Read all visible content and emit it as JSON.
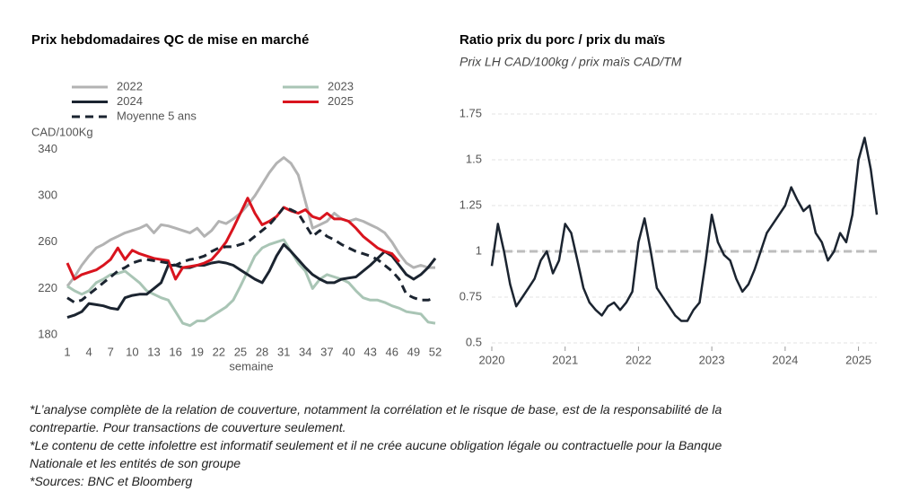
{
  "chart_data": [
    {
      "type": "line",
      "title": "Prix hebdomadaires QC de mise en marché",
      "y_label": "CAD/100Kg",
      "x_label": "semaine",
      "x": [
        1,
        2,
        3,
        4,
        5,
        6,
        7,
        8,
        9,
        10,
        11,
        12,
        13,
        14,
        15,
        16,
        17,
        18,
        19,
        20,
        21,
        22,
        23,
        24,
        25,
        26,
        27,
        28,
        29,
        30,
        31,
        32,
        33,
        34,
        35,
        36,
        37,
        38,
        39,
        40,
        41,
        42,
        43,
        44,
        45,
        46,
        47,
        48,
        49,
        50,
        51,
        52
      ],
      "xlim": [
        1,
        52
      ],
      "xticks": [
        1,
        4,
        7,
        10,
        13,
        16,
        19,
        22,
        25,
        28,
        31,
        34,
        37,
        40,
        43,
        46,
        49,
        52
      ],
      "ylim": [
        180,
        345
      ],
      "yticks": [
        180,
        220,
        260,
        300,
        340
      ],
      "grid": false,
      "legend": "top",
      "series": [
        {
          "name": "2022",
          "color": "#b3b3b3",
          "values": [
            222,
            230,
            240,
            248,
            255,
            258,
            262,
            265,
            268,
            270,
            272,
            275,
            268,
            275,
            274,
            272,
            270,
            268,
            272,
            265,
            270,
            278,
            276,
            280,
            285,
            292,
            300,
            310,
            320,
            328,
            333,
            328,
            318,
            295,
            272,
            275,
            278,
            285,
            280,
            278,
            280,
            278,
            275,
            272,
            268,
            260,
            250,
            242,
            238,
            240,
            238,
            238
          ]
        },
        {
          "name": "2023",
          "color": "#a9c5b5",
          "values": [
            222,
            218,
            215,
            218,
            225,
            228,
            232,
            233,
            235,
            230,
            225,
            218,
            215,
            212,
            210,
            200,
            190,
            188,
            192,
            192,
            196,
            200,
            204,
            210,
            222,
            235,
            248,
            255,
            258,
            260,
            262,
            252,
            242,
            235,
            220,
            228,
            232,
            230,
            228,
            225,
            218,
            212,
            210,
            210,
            208,
            205,
            203,
            200,
            199,
            198,
            191,
            190
          ]
        },
        {
          "name": "2024",
          "color": "#1b2430",
          "values": [
            195,
            197,
            200,
            207,
            206,
            205,
            203,
            202,
            212,
            214,
            215,
            215,
            220,
            225,
            240,
            240,
            238,
            238,
            240,
            240,
            242,
            243,
            242,
            240,
            236,
            232,
            228,
            225,
            235,
            248,
            258,
            252,
            245,
            238,
            232,
            228,
            225,
            225,
            228,
            229,
            230,
            235,
            240,
            246,
            252,
            248,
            240,
            232,
            228,
            232,
            238,
            246
          ]
        },
        {
          "name": "2025",
          "color": "#d9141e",
          "values": [
            242,
            228,
            232,
            234,
            236,
            240,
            245,
            255,
            245,
            253,
            250,
            248,
            246,
            245,
            244,
            228,
            238,
            239,
            240,
            242,
            245,
            252,
            260,
            272,
            285,
            298,
            285,
            275,
            278,
            282,
            290,
            287,
            285,
            288,
            282,
            280,
            285,
            280,
            280,
            278,
            272,
            265,
            260,
            255,
            252,
            250,
            243,
            null,
            null,
            null,
            null,
            null
          ]
        },
        {
          "name": "Moyenne 5 ans",
          "color": "#1b2430",
          "dash": true,
          "values": [
            212,
            208,
            210,
            215,
            220,
            225,
            230,
            235,
            238,
            242,
            244,
            245,
            244,
            243,
            242,
            240,
            243,
            245,
            246,
            248,
            252,
            255,
            256,
            256,
            258,
            260,
            265,
            270,
            275,
            282,
            290,
            288,
            285,
            275,
            265,
            270,
            265,
            262,
            258,
            255,
            252,
            250,
            248,
            245,
            240,
            235,
            228,
            215,
            212,
            210,
            210,
            212
          ]
        }
      ]
    },
    {
      "type": "line",
      "title": "Ratio prix du porc / prix du maïs",
      "subtitle": "Prix LH CAD/100kg / prix maïs CAD/TM",
      "x": [
        2020,
        2020.083,
        2020.167,
        2020.25,
        2020.333,
        2020.417,
        2020.5,
        2020.583,
        2020.667,
        2020.75,
        2020.833,
        2020.917,
        2021,
        2021.083,
        2021.167,
        2021.25,
        2021.333,
        2021.417,
        2021.5,
        2021.583,
        2021.667,
        2021.75,
        2021.833,
        2021.917,
        2022,
        2022.083,
        2022.167,
        2022.25,
        2022.333,
        2022.417,
        2022.5,
        2022.583,
        2022.667,
        2022.75,
        2022.833,
        2022.917,
        2023,
        2023.083,
        2023.167,
        2023.25,
        2023.333,
        2023.417,
        2023.5,
        2023.583,
        2023.667,
        2023.75,
        2023.833,
        2023.917,
        2024,
        2024.083,
        2024.167,
        2024.25,
        2024.333,
        2024.417,
        2024.5,
        2024.583,
        2024.667,
        2024.75,
        2024.833,
        2024.917,
        2025,
        2025.083,
        2025.167,
        2025.25
      ],
      "values": [
        0.92,
        1.15,
        1.0,
        0.82,
        0.7,
        0.75,
        0.8,
        0.85,
        0.95,
        1.0,
        0.88,
        0.95,
        1.15,
        1.1,
        0.95,
        0.8,
        0.72,
        0.68,
        0.65,
        0.7,
        0.72,
        0.68,
        0.72,
        0.78,
        1.05,
        1.18,
        1.0,
        0.8,
        0.75,
        0.7,
        0.65,
        0.62,
        0.62,
        0.68,
        0.72,
        0.95,
        1.2,
        1.05,
        0.98,
        0.95,
        0.85,
        0.78,
        0.82,
        0.9,
        1.0,
        1.1,
        1.15,
        1.2,
        1.25,
        1.35,
        1.28,
        1.22,
        1.25,
        1.1,
        1.05,
        0.95,
        1.0,
        1.1,
        1.05,
        1.2,
        1.5,
        1.62,
        1.45,
        1.2
      ],
      "color": "#1b2430",
      "xlim": [
        2020,
        2025.25
      ],
      "xticks": [
        2020,
        2021,
        2022,
        2023,
        2024,
        2025
      ],
      "ylim": [
        0.5,
        1.75
      ],
      "yticks": [
        0.5,
        0.75,
        1,
        1.25,
        1.5,
        1.75
      ],
      "grid": true,
      "reference_line": 1,
      "reference_color": "#bdbdbd"
    }
  ],
  "notes": [
    "*L’analyse complète de la relation de couverture, notamment la corrélation et le risque de base, est de la responsabilité de la contrepartie. Pour transactions de couverture seulement.",
    "*Le contenu de cette infolettre est informatif seulement et il ne crée aucune obligation légale ou contractuelle pour la Banque Nationale et les entités de son groupe",
    "*Sources: BNC et Bloomberg"
  ]
}
